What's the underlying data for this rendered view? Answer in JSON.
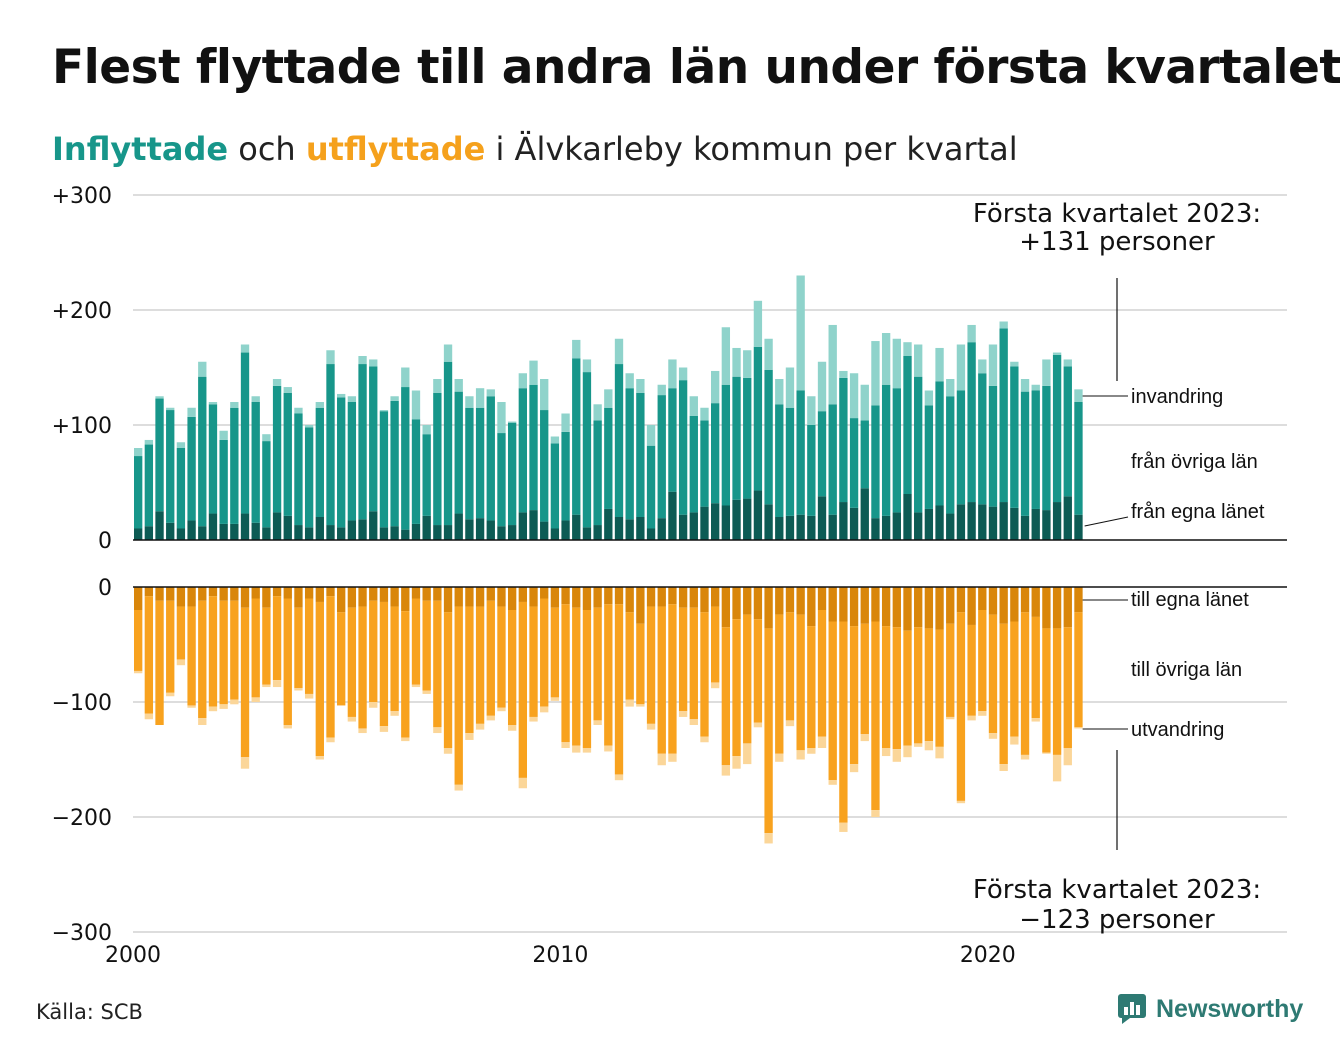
{
  "title": "Flest flyttade till andra län under första kvartalet",
  "subtitle": {
    "in_word": "Inflyttade",
    "and": " och ",
    "out_word": "utflyttade",
    "rest": " i Älvkarleby kommun per kvartal"
  },
  "source": "Källa: SCB",
  "brand": "Newsworthy",
  "colors": {
    "in_egna": "#0d5b54",
    "in_ovriga": "#17968a",
    "in_invandring": "#8fd3cb",
    "out_egna": "#d9860a",
    "out_ovriga": "#f8a21e",
    "out_utvandring": "#fbd699",
    "subtitle_in": "#17968a",
    "subtitle_out": "#f5a11c",
    "brand": "#2e7a73"
  },
  "chart_data": {
    "type": "bar",
    "stacked": true,
    "diverging": true,
    "x_axis": {
      "min": 2000,
      "max": 2027,
      "ticks": [
        2000,
        2010,
        2020
      ]
    },
    "top_axis": {
      "ylim": [
        0,
        300
      ],
      "ticks": [
        0,
        100,
        200,
        300
      ],
      "tick_labels": [
        "0",
        "+100",
        "+200",
        "+300"
      ]
    },
    "bottom_axis": {
      "ylim": [
        0,
        -300
      ],
      "ticks": [
        0,
        -100,
        -200,
        -300
      ],
      "tick_labels": [
        "0",
        "−100",
        "−200",
        "−300"
      ]
    },
    "grid": true,
    "series_labels": {
      "in_invandring": "invandring",
      "in_ovriga": "från övriga län",
      "in_egna": "från egna länet",
      "out_egna": "till egna länet",
      "out_ovriga": "till övriga län",
      "out_utvandring": "utvandring"
    },
    "annotation_top": {
      "line1": "Första kvartalet 2023:",
      "line2": "+131 personer"
    },
    "annotation_bottom": {
      "line1": "Första kvartalet 2023:",
      "line2": "−123 personer"
    },
    "inflyttade_total": [
      80,
      87,
      125,
      115,
      85,
      115,
      155,
      120,
      95,
      120,
      170,
      125,
      92,
      140,
      133,
      115,
      100,
      120,
      165,
      127,
      125,
      160,
      157,
      113,
      125,
      150,
      130,
      100,
      140,
      170,
      140,
      125,
      132,
      131,
      120,
      103,
      145,
      156,
      140,
      90,
      110,
      174,
      157,
      118,
      131,
      175,
      145,
      140,
      100,
      135,
      157,
      150,
      125,
      115,
      147,
      185,
      167,
      165,
      208,
      175,
      140,
      150,
      230,
      125,
      155,
      187,
      147,
      145,
      135,
      173,
      180,
      175,
      172,
      170,
      130,
      167,
      140,
      170,
      187,
      157,
      170,
      190,
      155,
      140,
      135,
      157,
      163,
      157,
      131
    ],
    "in_egna": [
      10,
      12,
      25,
      15,
      10,
      17,
      12,
      23,
      14,
      14,
      23,
      15,
      11,
      24,
      21,
      13,
      11,
      20,
      13,
      11,
      17,
      18,
      25,
      11,
      12,
      9,
      14,
      21,
      13,
      13,
      23,
      18,
      19,
      17,
      12,
      13,
      24,
      26,
      16,
      10,
      17,
      22,
      11,
      13,
      27,
      20,
      18,
      20,
      10,
      19,
      42,
      22,
      24,
      29,
      32,
      30,
      35,
      36,
      43,
      31,
      20,
      21,
      22,
      21,
      38,
      22,
      33,
      28,
      45,
      19,
      21,
      24,
      40,
      24,
      27,
      30,
      23,
      31,
      33,
      31,
      29,
      33,
      28,
      21,
      27,
      26,
      33,
      38,
      22
    ],
    "in_ovriga": [
      63,
      71,
      98,
      98,
      70,
      90,
      130,
      95,
      73,
      101,
      140,
      105,
      75,
      110,
      107,
      97,
      87,
      95,
      140,
      113,
      103,
      135,
      126,
      101,
      109,
      124,
      91,
      71,
      115,
      142,
      106,
      97,
      96,
      108,
      81,
      89,
      108,
      109,
      97,
      74,
      77,
      136,
      135,
      91,
      88,
      133,
      114,
      108,
      72,
      107,
      90,
      117,
      84,
      75,
      87,
      105,
      107,
      105,
      125,
      117,
      98,
      94,
      108,
      79,
      74,
      96,
      108,
      78,
      59,
      98,
      114,
      108,
      120,
      118,
      90,
      108,
      102,
      99,
      139,
      114,
      105,
      151,
      123,
      108,
      103,
      108,
      128,
      113,
      98
    ],
    "in_invandring": [
      7,
      4,
      2,
      2,
      5,
      8,
      13,
      2,
      8,
      5,
      7,
      5,
      6,
      6,
      5,
      5,
      2,
      5,
      12,
      3,
      5,
      7,
      6,
      1,
      4,
      17,
      25,
      8,
      12,
      15,
      11,
      10,
      17,
      6,
      27,
      1,
      13,
      21,
      27,
      6,
      16,
      16,
      11,
      14,
      16,
      22,
      13,
      12,
      18,
      9,
      25,
      11,
      17,
      11,
      28,
      50,
      25,
      24,
      40,
      27,
      22,
      35,
      100,
      25,
      43,
      69,
      6,
      39,
      31,
      56,
      45,
      43,
      12,
      28,
      13,
      29,
      15,
      40,
      15,
      12,
      36,
      6,
      4,
      11,
      5,
      23,
      2,
      6,
      11
    ],
    "utflyttade_total": [
      -75,
      -115,
      -120,
      -95,
      -68,
      -105,
      -120,
      -108,
      -106,
      -102,
      -158,
      -100,
      -87,
      -87,
      -123,
      -90,
      -97,
      -150,
      -135,
      -103,
      -117,
      -127,
      -105,
      -126,
      -112,
      -134,
      -87,
      -93,
      -127,
      -145,
      -177,
      -133,
      -124,
      -116,
      -108,
      -125,
      -175,
      -117,
      -109,
      -99,
      -140,
      -144,
      -144,
      -120,
      -143,
      -168,
      -104,
      -104,
      -124,
      -155,
      -152,
      -113,
      -120,
      -135,
      -88,
      -164,
      -158,
      -154,
      -122,
      -223,
      -152,
      -121,
      -150,
      -145,
      -140,
      -172,
      -213,
      -161,
      -134,
      -200,
      -147,
      -152,
      -148,
      -139,
      -142,
      -149,
      -115,
      -188,
      -116,
      -112,
      -132,
      -160,
      -137,
      -150,
      -117,
      -145,
      -169,
      -155,
      -123
    ],
    "out_egna": [
      -20,
      -8,
      -12,
      -12,
      -17,
      -17,
      -12,
      -8,
      -12,
      -12,
      -18,
      -10,
      -18,
      -8,
      -10,
      -18,
      -10,
      -13,
      -8,
      -22,
      -18,
      -17,
      -12,
      -13,
      -17,
      -21,
      -10,
      -12,
      -12,
      -22,
      -17,
      -17,
      -17,
      -12,
      -17,
      -20,
      -13,
      -17,
      -10,
      -18,
      -15,
      -18,
      -20,
      -18,
      -15,
      -15,
      -22,
      -32,
      -17,
      -17,
      -15,
      -18,
      -18,
      -22,
      -17,
      -35,
      -28,
      -24,
      -28,
      -36,
      -24,
      -22,
      -24,
      -34,
      -20,
      -30,
      -30,
      -34,
      -32,
      -30,
      -34,
      -35,
      -38,
      -35,
      -36,
      -37,
      -32,
      -22,
      -33,
      -20,
      -24,
      -32,
      -30,
      -22,
      -26,
      -36,
      -36,
      -35,
      -22
    ],
    "out_ovriga": [
      -53,
      -102,
      -108,
      -80,
      -46,
      -86,
      -102,
      -96,
      -90,
      -86,
      -130,
      -86,
      -67,
      -73,
      -110,
      -70,
      -83,
      -134,
      -123,
      -81,
      -95,
      -106,
      -88,
      -108,
      -91,
      -110,
      -75,
      -78,
      -110,
      -118,
      -155,
      -110,
      -102,
      -100,
      -88,
      -100,
      -153,
      -96,
      -94,
      -78,
      -120,
      -120,
      -120,
      -98,
      -123,
      -148,
      -76,
      -70,
      -102,
      -128,
      -130,
      -90,
      -97,
      -108,
      -66,
      -120,
      -119,
      -112,
      -90,
      -178,
      -121,
      -94,
      -118,
      -106,
      -110,
      -138,
      -175,
      -120,
      -96,
      -164,
      -106,
      -106,
      -100,
      -101,
      -98,
      -102,
      -81,
      -164,
      -79,
      -88,
      -103,
      -122,
      -100,
      -124,
      -88,
      -108,
      -110,
      -105,
      -100
    ],
    "out_utvandring": [
      -2,
      -5,
      0,
      -3,
      -5,
      -2,
      -6,
      -4,
      -4,
      -4,
      -10,
      -4,
      -2,
      -6,
      -3,
      -2,
      -4,
      -3,
      -4,
      0,
      -4,
      -4,
      -5,
      -5,
      -4,
      -3,
      -2,
      -3,
      -5,
      -5,
      -5,
      -6,
      -5,
      -4,
      -3,
      -5,
      -9,
      -4,
      -5,
      -3,
      -5,
      -6,
      -4,
      -4,
      -5,
      -5,
      -6,
      -2,
      -5,
      -10,
      -7,
      -5,
      -5,
      -5,
      -5,
      -9,
      -11,
      -18,
      -4,
      -9,
      -7,
      -5,
      -8,
      -5,
      -10,
      -4,
      -8,
      -7,
      -6,
      -6,
      -7,
      -11,
      -10,
      -3,
      -8,
      -10,
      -2,
      -2,
      -4,
      -4,
      -5,
      -6,
      -7,
      -4,
      -3,
      -1,
      -23,
      -15,
      -1
    ]
  }
}
